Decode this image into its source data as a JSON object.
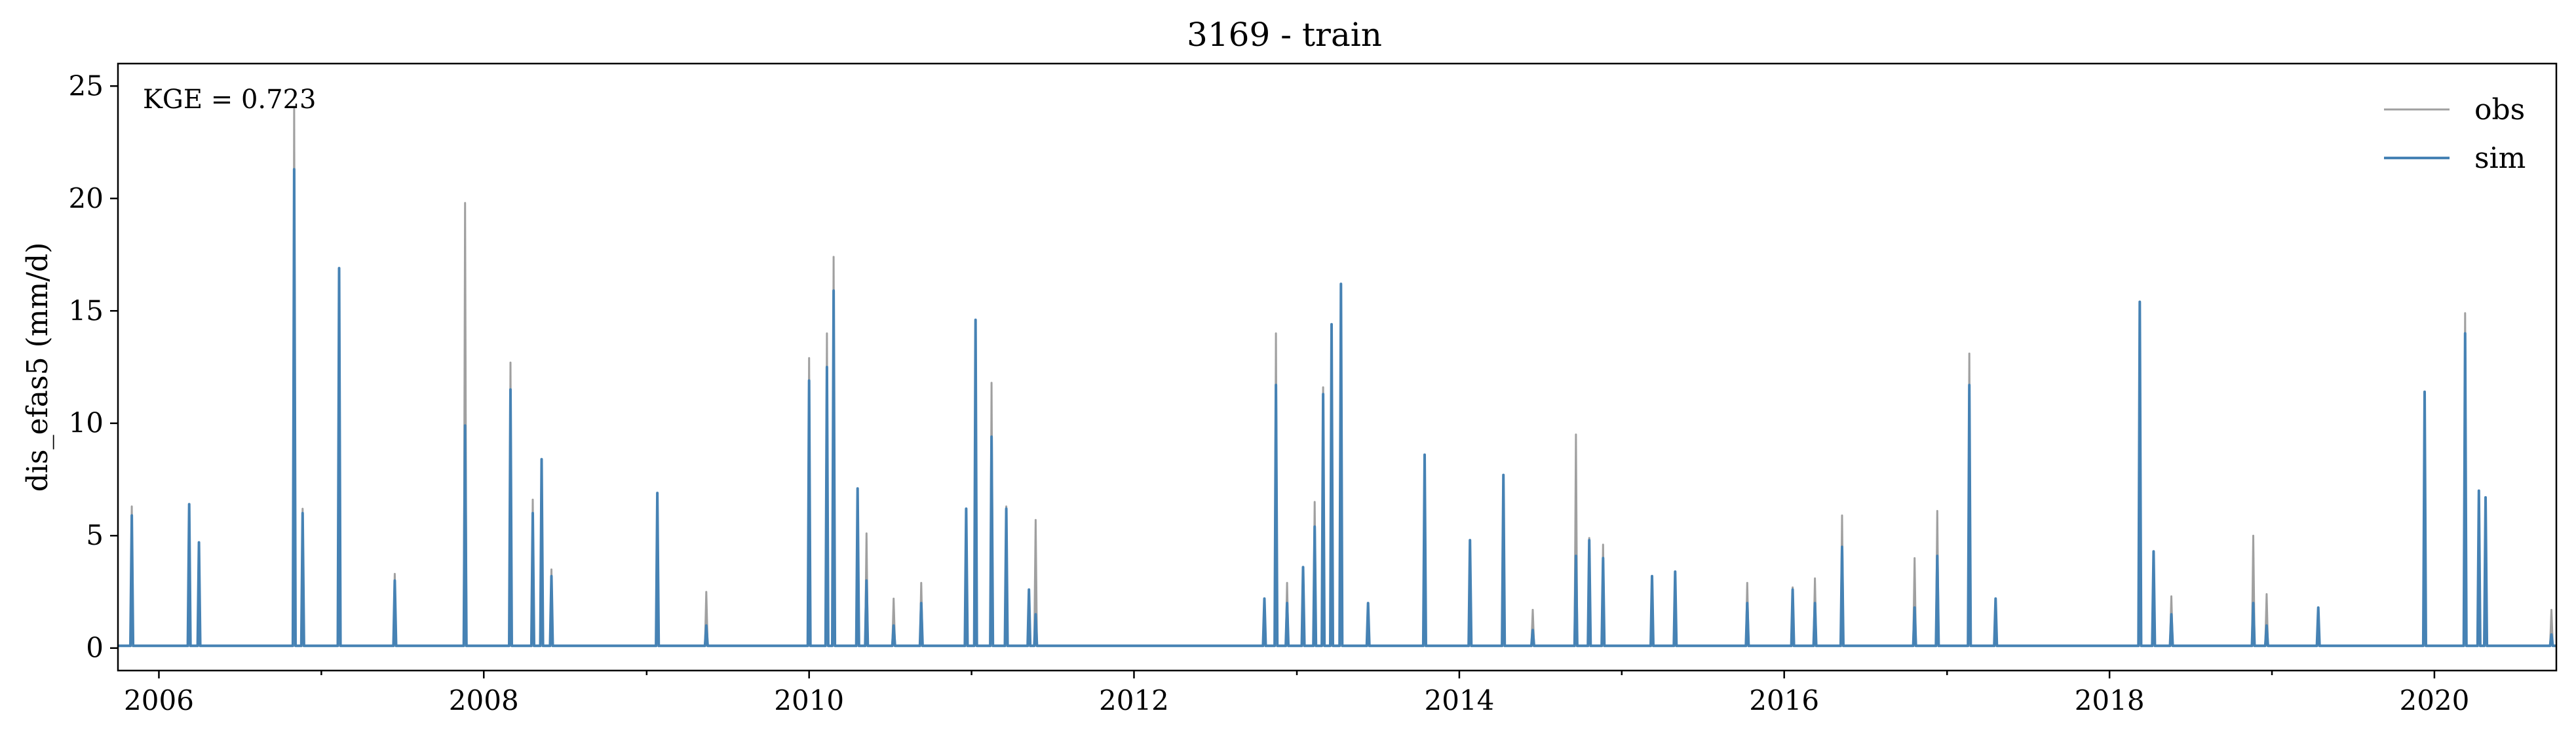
{
  "chart_data": {
    "type": "line",
    "title": "3169 - train",
    "xlabel": "",
    "ylabel": "dis_efas5 (mm/d)",
    "annotation": "KGE = 0.723",
    "xlim": [
      "2005-10-01",
      "2020-10-01"
    ],
    "ylim": [
      -1,
      26
    ],
    "x_ticks": [
      "2006",
      "2008",
      "2010",
      "2012",
      "2014",
      "2016",
      "2018",
      "2020"
    ],
    "y_ticks": [
      0,
      5,
      10,
      15,
      20,
      25
    ],
    "grid": false,
    "legend_position": "top-right",
    "baseline": 0.1,
    "series": [
      {
        "name": "obs",
        "color": "#a0a0a0",
        "peaks": [
          [
            "2005-11-01",
            6.3
          ],
          [
            "2006-03-10",
            6.4
          ],
          [
            "2006-04-01",
            4.7
          ],
          [
            "2006-11-01",
            24.0
          ],
          [
            "2006-11-20",
            6.2
          ],
          [
            "2007-02-10",
            16.9
          ],
          [
            "2007-06-15",
            3.3
          ],
          [
            "2007-11-20",
            19.8
          ],
          [
            "2008-03-01",
            12.7
          ],
          [
            "2008-04-20",
            6.6
          ],
          [
            "2008-05-10",
            8.4
          ],
          [
            "2008-06-01",
            3.5
          ],
          [
            "2009-01-25",
            6.9
          ],
          [
            "2009-05-15",
            2.5
          ],
          [
            "2010-01-01",
            12.9
          ],
          [
            "2010-02-10",
            14.0
          ],
          [
            "2010-02-25",
            17.4
          ],
          [
            "2010-04-20",
            7.1
          ],
          [
            "2010-05-10",
            5.1
          ],
          [
            "2010-07-10",
            2.2
          ],
          [
            "2010-09-10",
            2.9
          ],
          [
            "2010-12-20",
            6.2
          ],
          [
            "2011-01-10",
            14.6
          ],
          [
            "2011-02-15",
            11.8
          ],
          [
            "2011-03-20",
            6.3
          ],
          [
            "2011-05-10",
            2.6
          ],
          [
            "2011-05-25",
            5.7
          ],
          [
            "2012-10-20",
            2.2
          ],
          [
            "2012-11-15",
            14.0
          ],
          [
            "2012-12-10",
            2.9
          ],
          [
            "2013-01-15",
            3.6
          ],
          [
            "2013-02-10",
            6.5
          ],
          [
            "2013-03-01",
            11.6
          ],
          [
            "2013-03-20",
            14.4
          ],
          [
            "2013-04-10",
            16.2
          ],
          [
            "2013-06-10",
            2.0
          ],
          [
            "2013-10-15",
            8.6
          ],
          [
            "2014-01-25",
            4.8
          ],
          [
            "2014-04-10",
            7.7
          ],
          [
            "2014-06-15",
            1.7
          ],
          [
            "2014-09-20",
            9.5
          ],
          [
            "2014-10-20",
            4.9
          ],
          [
            "2014-11-20",
            4.6
          ],
          [
            "2015-03-10",
            3.2
          ],
          [
            "2015-05-01",
            3.4
          ],
          [
            "2015-10-10",
            2.9
          ],
          [
            "2016-01-20",
            2.7
          ],
          [
            "2016-03-10",
            3.1
          ],
          [
            "2016-05-10",
            5.9
          ],
          [
            "2016-10-20",
            4.0
          ],
          [
            "2016-12-10",
            6.1
          ],
          [
            "2017-02-20",
            13.1
          ],
          [
            "2017-04-20",
            2.2
          ],
          [
            "2018-03-10",
            15.4
          ],
          [
            "2018-04-10",
            4.3
          ],
          [
            "2018-05-20",
            2.3
          ],
          [
            "2018-11-20",
            5.0
          ],
          [
            "2018-12-20",
            2.4
          ],
          [
            "2019-04-15",
            1.8
          ],
          [
            "2019-12-10",
            11.4
          ],
          [
            "2020-03-10",
            14.9
          ],
          [
            "2020-04-10",
            7.0
          ],
          [
            "2020-04-25",
            6.7
          ],
          [
            "2020-09-20",
            1.7
          ]
        ]
      },
      {
        "name": "sim",
        "color": "#4682b4",
        "peaks": [
          [
            "2005-11-01",
            5.9
          ],
          [
            "2006-03-10",
            6.4
          ],
          [
            "2006-04-01",
            4.7
          ],
          [
            "2006-11-01",
            21.3
          ],
          [
            "2006-11-20",
            6.0
          ],
          [
            "2007-02-10",
            16.9
          ],
          [
            "2007-06-15",
            3.0
          ],
          [
            "2007-11-20",
            9.9
          ],
          [
            "2008-03-01",
            11.5
          ],
          [
            "2008-04-20",
            6.0
          ],
          [
            "2008-05-10",
            8.4
          ],
          [
            "2008-06-01",
            3.2
          ],
          [
            "2009-01-25",
            6.9
          ],
          [
            "2009-05-15",
            1.0
          ],
          [
            "2010-01-01",
            11.9
          ],
          [
            "2010-02-10",
            12.5
          ],
          [
            "2010-02-25",
            15.9
          ],
          [
            "2010-04-20",
            7.1
          ],
          [
            "2010-05-10",
            3.0
          ],
          [
            "2010-07-10",
            1.0
          ],
          [
            "2010-09-10",
            2.0
          ],
          [
            "2010-12-20",
            6.2
          ],
          [
            "2011-01-10",
            14.6
          ],
          [
            "2011-02-15",
            9.4
          ],
          [
            "2011-03-20",
            6.2
          ],
          [
            "2011-05-10",
            2.6
          ],
          [
            "2011-05-25",
            1.5
          ],
          [
            "2012-10-20",
            2.2
          ],
          [
            "2012-11-15",
            11.7
          ],
          [
            "2012-12-10",
            2.0
          ],
          [
            "2013-01-15",
            3.6
          ],
          [
            "2013-02-10",
            5.4
          ],
          [
            "2013-03-01",
            11.3
          ],
          [
            "2013-03-20",
            14.4
          ],
          [
            "2013-04-10",
            16.2
          ],
          [
            "2013-06-10",
            2.0
          ],
          [
            "2013-10-15",
            8.6
          ],
          [
            "2014-01-25",
            4.8
          ],
          [
            "2014-04-10",
            7.7
          ],
          [
            "2014-06-15",
            0.8
          ],
          [
            "2014-09-20",
            4.1
          ],
          [
            "2014-10-20",
            4.8
          ],
          [
            "2014-11-20",
            4.0
          ],
          [
            "2015-03-10",
            3.2
          ],
          [
            "2015-05-01",
            3.4
          ],
          [
            "2015-10-10",
            2.0
          ],
          [
            "2016-01-20",
            2.6
          ],
          [
            "2016-03-10",
            2.0
          ],
          [
            "2016-05-10",
            4.5
          ],
          [
            "2016-10-20",
            1.8
          ],
          [
            "2016-12-10",
            4.1
          ],
          [
            "2017-02-20",
            11.7
          ],
          [
            "2017-04-20",
            2.2
          ],
          [
            "2018-03-10",
            15.4
          ],
          [
            "2018-04-10",
            4.3
          ],
          [
            "2018-05-20",
            1.5
          ],
          [
            "2018-11-20",
            2.0
          ],
          [
            "2018-12-20",
            1.0
          ],
          [
            "2019-04-15",
            1.8
          ],
          [
            "2019-12-10",
            11.4
          ],
          [
            "2020-03-10",
            14.0
          ],
          [
            "2020-04-10",
            7.0
          ],
          [
            "2020-04-25",
            6.7
          ],
          [
            "2020-09-20",
            0.6
          ]
        ]
      }
    ]
  }
}
